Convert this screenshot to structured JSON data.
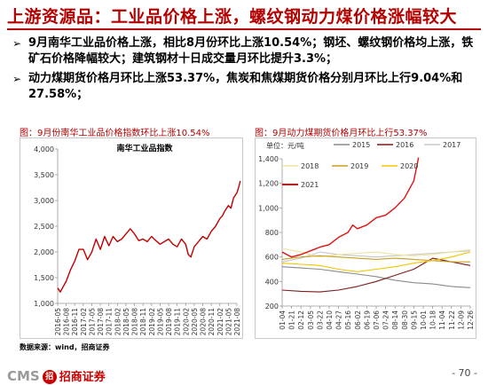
{
  "slide": {
    "title": "上游资源品：工业品价格上涨，螺纹钢动力煤价格涨幅较大",
    "bullets": [
      "9月南华工业品价格上涨，相比8月份环比上涨10.54%；钢坯、螺纹钢价格均上涨，铁矿石价格降幅较大；建筑钢材十日成交量月环比提升3.3%；",
      "动力煤期货价格月环比上涨53.37%，焦炭和焦煤期货价格分别月环比上行9.04%和27.58%；"
    ],
    "bullet_mark": "➢",
    "source": "数据来源：wind，招商证券",
    "footer_brand": "CMS",
    "footer_logo": "招",
    "footer_name": "招商证券",
    "page": "- 70 -",
    "colors": {
      "accent": "#b30000"
    }
  },
  "chart_data": [
    {
      "type": "line",
      "caption": "图：9月份南华工业品价格指数环比上涨10.54%",
      "title": "南华工业品指数",
      "ylim": [
        1000,
        4000
      ],
      "yticks": [
        "1,000",
        "1,500",
        "2,000",
        "2,500",
        "3,000",
        "3,500",
        "4,000"
      ],
      "xticks": [
        "2016-05",
        "2016-08",
        "2016-11",
        "2017-02",
        "2017-05",
        "2017-08",
        "2017-11",
        "2018-02",
        "2018-05",
        "2018-08",
        "2018-11",
        "2019-02",
        "2019-05",
        "2019-08",
        "2019-11",
        "2020-02",
        "2020-05",
        "2020-08",
        "2020-11",
        "2021-02",
        "2021-05",
        "2021-08"
      ],
      "grid": false,
      "series": [
        {
          "color": "#c00000",
          "x": [
            0,
            0.3,
            1,
            1.5,
            2,
            2.5,
            3,
            3.5,
            4,
            4.5,
            5,
            5.5,
            6,
            6.5,
            7,
            7.5,
            8,
            8.5,
            9,
            9.5,
            10,
            10.5,
            11,
            11.5,
            12,
            12.5,
            13,
            13.5,
            14,
            14.5,
            15,
            15.3,
            15.6,
            16,
            16.5,
            17,
            17.5,
            18,
            18.5,
            19,
            19.3,
            19.6,
            20,
            20.3,
            20.6,
            21,
            21.2,
            21.4
          ],
          "values": [
            1300,
            1220,
            1430,
            1650,
            1820,
            2050,
            2050,
            1850,
            2000,
            2250,
            2050,
            2300,
            2120,
            2300,
            2200,
            2250,
            2350,
            2450,
            2350,
            2220,
            2250,
            2200,
            2300,
            2220,
            2150,
            2200,
            2250,
            2150,
            2100,
            2250,
            2150,
            1950,
            1900,
            2100,
            2200,
            2300,
            2250,
            2400,
            2500,
            2650,
            2700,
            2800,
            2900,
            2850,
            3050,
            3150,
            3250,
            3380
          ]
        }
      ]
    },
    {
      "type": "line",
      "caption": "图：9月动力煤期货价格月环比上行53.37%",
      "unit": "单位：元/吨",
      "ylim": [
        200,
        1400
      ],
      "yticks": [
        "200",
        "400",
        "600",
        "800",
        "1,000",
        "1,200",
        "1,400"
      ],
      "xticks": [
        "01-04",
        "01-21",
        "02-12",
        "03-05",
        "03-22",
        "04-10",
        "04-27",
        "05-16",
        "06-02",
        "06-19",
        "07-06",
        "07-24",
        "08-14",
        "08-30",
        "09-15",
        "10-01",
        "10-18",
        "11-04",
        "11-22",
        "12-09",
        "12-26"
      ],
      "grid": false,
      "legend": "top",
      "series": [
        {
          "name": "2015",
          "color": "#8a8a8a",
          "x": [
            0,
            2,
            4,
            6,
            8,
            10,
            12,
            14,
            16,
            18,
            20
          ],
          "values": [
            520,
            510,
            500,
            480,
            460,
            440,
            410,
            390,
            380,
            360,
            350
          ]
        },
        {
          "name": "2016",
          "color": "#7a1a1a",
          "x": [
            0,
            2,
            4,
            6,
            8,
            10,
            12,
            14,
            16,
            18,
            20
          ],
          "values": [
            330,
            320,
            315,
            330,
            360,
            400,
            450,
            500,
            590,
            560,
            530
          ]
        },
        {
          "name": "2017",
          "color": "#c8c8c8",
          "x": [
            0,
            2,
            4,
            6,
            8,
            10,
            12,
            14,
            16,
            18,
            20
          ],
          "values": [
            560,
            590,
            640,
            620,
            610,
            600,
            610,
            620,
            630,
            640,
            650
          ]
        },
        {
          "name": "2018",
          "color": "#ede3a0",
          "x": [
            0,
            2,
            4,
            6,
            8,
            10,
            12,
            14,
            16,
            18,
            20
          ],
          "values": [
            670,
            640,
            600,
            620,
            630,
            640,
            620,
            610,
            620,
            640,
            660
          ]
        },
        {
          "name": "2019",
          "color": "#c9a020",
          "x": [
            0,
            2,
            4,
            6,
            8,
            10,
            12,
            14,
            16,
            18,
            20
          ],
          "values": [
            580,
            600,
            610,
            600,
            590,
            580,
            590,
            580,
            570,
            560,
            560
          ]
        },
        {
          "name": "2020",
          "color": "#f5c400",
          "x": [
            0,
            2,
            4,
            6,
            8,
            10,
            12,
            14,
            16,
            18,
            20
          ],
          "values": [
            550,
            540,
            530,
            500,
            480,
            500,
            520,
            550,
            570,
            600,
            640
          ]
        },
        {
          "name": "2021",
          "color": "#e01010",
          "x": [
            0,
            1,
            2,
            3,
            4,
            5,
            6,
            7,
            7.5,
            8,
            9,
            10,
            11,
            12,
            13,
            14,
            14.5
          ],
          "values": [
            640,
            600,
            620,
            650,
            680,
            700,
            760,
            800,
            860,
            830,
            860,
            920,
            940,
            1000,
            1080,
            1220,
            1410
          ]
        }
      ]
    }
  ]
}
